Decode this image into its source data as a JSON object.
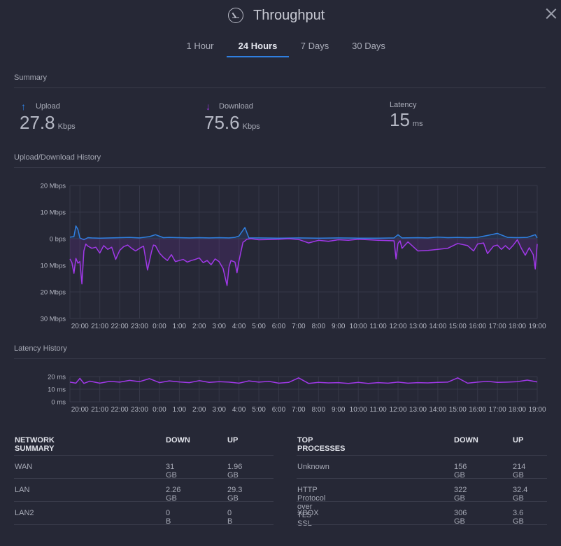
{
  "header": {
    "title": "Throughput",
    "icon": "gauge-icon"
  },
  "tabs": [
    {
      "label": "1 Hour",
      "active": false
    },
    {
      "label": "24 Hours",
      "active": true
    },
    {
      "label": "7 Days",
      "active": false
    },
    {
      "label": "30 Days",
      "active": false
    }
  ],
  "summary": {
    "section_label": "Summary",
    "upload": {
      "label": "Upload",
      "value": "27.8",
      "unit": "Kbps"
    },
    "download": {
      "label": "Download",
      "value": "75.6",
      "unit": "Kbps"
    },
    "latency": {
      "label": "Latency",
      "value": "15",
      "unit": "ms"
    }
  },
  "history": {
    "section_label": "Upload/Download History"
  },
  "latency_history": {
    "section_label": "Latency History"
  },
  "colors": {
    "upload": "#2f7fe0",
    "download": "#a038e8",
    "latency": "#a038e8",
    "accent": "#2f7fe0"
  },
  "chart_data": [
    {
      "type": "line",
      "y_tick_labels": [
        "20 Mbps",
        "10 Mbps",
        "0 bps",
        "10 Mbps",
        "20 Mbps",
        "30 Mbps"
      ],
      "y_ticks": [
        20,
        10,
        0,
        -10,
        -20,
        -30
      ],
      "ylim": [
        -30,
        20
      ],
      "categories": [
        "20:00",
        "21:00",
        "22:00",
        "23:00",
        "0:00",
        "1:00",
        "2:00",
        "3:00",
        "4:00",
        "5:00",
        "6:00",
        "7:00",
        "8:00",
        "9:00",
        "10:00",
        "11:00",
        "12:00",
        "13:00",
        "14:00",
        "15:00",
        "16:00",
        "17:00",
        "18:00",
        "19:00"
      ],
      "xlim": [
        -0.5,
        23.0
      ],
      "grid": true,
      "series": [
        {
          "x": [
            -0.5,
            -0.3,
            -0.2,
            -0.1,
            0.0,
            0.2,
            0.4,
            0.6,
            1.0,
            1.5,
            2.0,
            2.5,
            3.0,
            3.5,
            3.8,
            4.2,
            4.5,
            5.0,
            5.5,
            6.0,
            6.5,
            7.0,
            7.5,
            7.8,
            8.0,
            8.3,
            8.5,
            9.0,
            10.0,
            11.0,
            12.0,
            13.0,
            14.0,
            15.0,
            15.8,
            16.0,
            16.2,
            17.0,
            17.5,
            18.0,
            18.5,
            19.0,
            19.5,
            20.0,
            20.5,
            21.0,
            21.5,
            22.0,
            22.5,
            22.9,
            23.0
          ],
          "y": [
            0.6,
            0.8,
            4.8,
            3.5,
            0.3,
            -0.4,
            0.4,
            0.3,
            0.2,
            0.3,
            0.4,
            0.5,
            0.3,
            0.8,
            1.5,
            0.4,
            0.5,
            0.4,
            0.3,
            0.4,
            0.3,
            0.4,
            0.3,
            0.5,
            1.0,
            4.2,
            0.3,
            0.3,
            0.2,
            0.3,
            0.2,
            0.3,
            0.2,
            0.2,
            0.3,
            1.5,
            0.3,
            0.4,
            0.3,
            0.6,
            0.4,
            0.5,
            0.4,
            0.5,
            1.2,
            2.0,
            0.5,
            0.4,
            0.5,
            1.5,
            0.3
          ]
        },
        {
          "x": [
            -0.5,
            -0.4,
            -0.3,
            -0.2,
            -0.1,
            0.0,
            0.1,
            0.2,
            0.3,
            0.4,
            0.6,
            0.8,
            1.0,
            1.2,
            1.4,
            1.6,
            1.8,
            2.0,
            2.2,
            2.4,
            2.6,
            2.8,
            3.0,
            3.2,
            3.4,
            3.6,
            3.7,
            3.8,
            4.0,
            4.2,
            4.4,
            4.6,
            4.8,
            5.0,
            5.2,
            5.4,
            5.6,
            5.8,
            6.0,
            6.2,
            6.4,
            6.6,
            6.8,
            7.0,
            7.2,
            7.4,
            7.5,
            7.6,
            7.8,
            7.9,
            8.0,
            8.2,
            8.4,
            8.6,
            8.8,
            9.0,
            10.0,
            10.5,
            11.0,
            11.5,
            12.0,
            12.5,
            13.0,
            13.5,
            14.0,
            15.0,
            15.8,
            15.9,
            16.0,
            16.1,
            16.2,
            16.5,
            17.0,
            17.5,
            18.0,
            18.5,
            19.0,
            19.5,
            19.8,
            20.0,
            20.3,
            20.5,
            20.8,
            21.0,
            21.2,
            21.4,
            21.6,
            21.8,
            22.0,
            22.2,
            22.4,
            22.6,
            22.8,
            22.9,
            23.0
          ],
          "y": [
            -7.6,
            -9.0,
            -13.0,
            -7.4,
            -9.2,
            -8.6,
            -17.0,
            -4.6,
            -2.0,
            -2.8,
            -3.6,
            -3.2,
            -5.4,
            -2.6,
            -4.0,
            -3.2,
            -7.8,
            -4.4,
            -3.0,
            -2.4,
            -3.6,
            -4.6,
            -3.6,
            -2.8,
            -11.8,
            -5.0,
            -2.4,
            -2.6,
            -5.4,
            -7.0,
            -8.2,
            -6.0,
            -8.6,
            -8.2,
            -7.8,
            -8.8,
            -8.2,
            -7.8,
            -7.2,
            -9.0,
            -8.2,
            -9.8,
            -7.6,
            -8.6,
            -11.2,
            -17.6,
            -10.6,
            -8.2,
            -8.8,
            -12.8,
            -8.4,
            -1.4,
            -0.2,
            0.0,
            -0.2,
            -0.4,
            -0.2,
            0.0,
            -0.3,
            -1.6,
            -0.6,
            -1.0,
            -0.4,
            -0.6,
            -0.2,
            -0.6,
            -0.8,
            -7.6,
            -1.8,
            -0.8,
            -3.6,
            -1.2,
            -4.6,
            -4.4,
            -4.0,
            -3.6,
            -1.8,
            -2.6,
            -4.6,
            -2.0,
            -1.6,
            -5.6,
            -2.8,
            -2.4,
            -4.0,
            -2.6,
            -4.0,
            -2.4,
            -0.4,
            -3.6,
            -6.2,
            -3.4,
            -6.0,
            -11.4,
            -2.0
          ]
        }
      ]
    },
    {
      "type": "line",
      "y_tick_labels": [
        "20 ms",
        "10 ms",
        "0 ms"
      ],
      "y_ticks": [
        20,
        10,
        0
      ],
      "ylim": [
        0,
        20
      ],
      "categories": [
        "20:00",
        "21:00",
        "22:00",
        "23:00",
        "0:00",
        "1:00",
        "2:00",
        "3:00",
        "4:00",
        "5:00",
        "6:00",
        "7:00",
        "8:00",
        "9:00",
        "10:00",
        "11:00",
        "12:00",
        "13:00",
        "14:00",
        "15:00",
        "16:00",
        "17:00",
        "18:00",
        "19:00"
      ],
      "xlim": [
        -0.5,
        23.0
      ],
      "grid": true,
      "series": [
        {
          "x": [
            -0.5,
            -0.2,
            0.0,
            0.2,
            0.5,
            1.0,
            1.5,
            2.0,
            2.5,
            3.0,
            3.5,
            4.0,
            4.5,
            5.0,
            5.5,
            6.0,
            6.5,
            7.0,
            7.5,
            8.0,
            8.5,
            9.0,
            9.5,
            10.0,
            10.5,
            11.0,
            11.5,
            12.0,
            12.5,
            13.0,
            13.5,
            14.0,
            14.5,
            15.0,
            15.5,
            16.0,
            16.5,
            17.0,
            17.5,
            18.0,
            18.5,
            19.0,
            19.5,
            20.0,
            20.5,
            21.0,
            21.5,
            22.0,
            22.5,
            23.0
          ],
          "y": [
            15.6,
            14.8,
            18.6,
            14.6,
            16.4,
            14.8,
            16.2,
            15.6,
            17.0,
            16.0,
            18.4,
            15.2,
            16.6,
            15.8,
            15.2,
            16.8,
            15.4,
            16.0,
            15.6,
            14.8,
            16.6,
            15.6,
            16.2,
            14.8,
            15.4,
            19.0,
            14.6,
            15.4,
            15.0,
            15.2,
            14.6,
            15.4,
            14.6,
            15.2,
            14.8,
            15.6,
            14.8,
            15.2,
            15.0,
            15.4,
            15.6,
            19.0,
            14.8,
            15.6,
            16.2,
            15.4,
            15.6,
            16.0,
            17.2,
            15.8
          ]
        }
      ]
    }
  ],
  "network_summary": {
    "headers": [
      "NETWORK SUMMARY",
      "DOWN",
      "UP"
    ],
    "rows": [
      [
        "WAN",
        "31 GB",
        "1.96 GB"
      ],
      [
        "LAN",
        "2.26 GB",
        "29.3 GB"
      ],
      [
        "LAN2",
        "0 B",
        "0 B"
      ]
    ]
  },
  "top_processes": {
    "headers": [
      "TOP PROCESSES",
      "DOWN",
      "UP"
    ],
    "rows": [
      [
        "Unknown",
        "156 GB",
        "214 GB"
      ],
      [
        "HTTP Protocol over TLS SSL",
        "322 GB",
        "32.4 GB"
      ],
      [
        "XBOX",
        "306 GB",
        "3.6 GB"
      ]
    ]
  }
}
